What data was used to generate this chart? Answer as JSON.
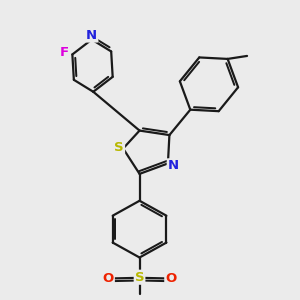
{
  "background_color": "#ebebeb",
  "bond_color": "#1a1a1a",
  "bond_width": 1.6,
  "atom_colors": {
    "N": "#2222dd",
    "S": "#b8b800",
    "F": "#dd00dd",
    "O": "#ee2200",
    "C": "#1a1a1a"
  },
  "figsize": [
    3.0,
    3.0
  ],
  "dpi": 100
}
